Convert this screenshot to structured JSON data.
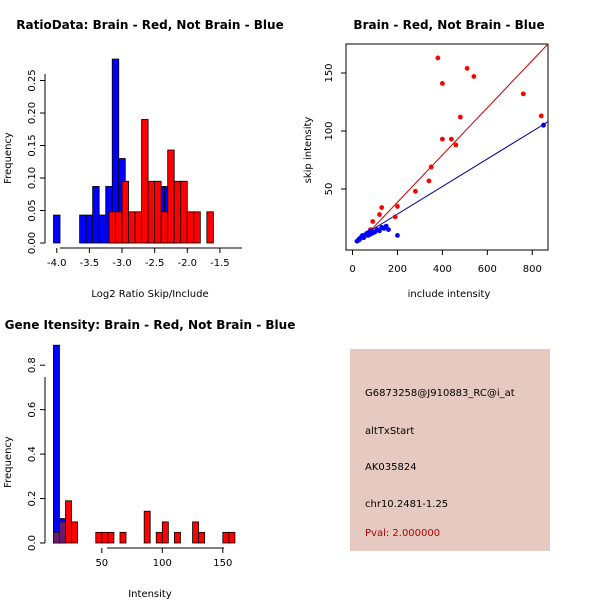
{
  "colors": {
    "red": "#ff0000",
    "blue": "#0000ff",
    "overlap": "#6a1a6c",
    "panel_bg": "#e6c9c0",
    "pval": "#b00000",
    "red_line": "#cc0000",
    "blue_line": "#00008b"
  },
  "chart_data": [
    {
      "type": "bar",
      "title": "RatioData: Brain - Red, Not Brain - Blue",
      "xlabel": "Log2 Ratio Skip/Include",
      "ylabel": "Frequency",
      "xlim": [
        -4.05,
        -1.1
      ],
      "ylim": [
        0,
        0.28
      ],
      "bin_width": 0.1,
      "xticks": [
        -4.0,
        -3.5,
        -3.0,
        -2.5,
        -2.0,
        -1.5
      ],
      "xtick_labels": [
        "-4.0",
        "-3.5",
        "-3.0",
        "-2.5",
        "-2.0",
        "-1.5"
      ],
      "yticks": [
        0,
        0.05,
        0.1,
        0.15,
        0.2,
        0.25
      ],
      "ytick_labels": [
        "0.00",
        "0.05",
        "0.10",
        "0.15",
        "0.20",
        "0.25"
      ],
      "series": [
        {
          "name": "Brain",
          "color": "red",
          "bins": [
            [
              -3.2,
              0.048
            ],
            [
              -3.1,
              0.048
            ],
            [
              -3.0,
              0.095
            ],
            [
              -2.9,
              0.048
            ],
            [
              -2.8,
              0.048
            ],
            [
              -2.7,
              0.19
            ],
            [
              -2.6,
              0.095
            ],
            [
              -2.5,
              0.095
            ],
            [
              -2.4,
              0.048
            ],
            [
              -2.3,
              0.143
            ],
            [
              -2.2,
              0.095
            ],
            [
              -2.1,
              0.095
            ],
            [
              -2.0,
              0.048
            ],
            [
              -1.9,
              0.048
            ],
            [
              -1.7,
              0.048
            ]
          ]
        },
        {
          "name": "Not Brain",
          "color": "blue",
          "bins": [
            [
              -4.05,
              0.043
            ],
            [
              -3.65,
              0.043
            ],
            [
              -3.55,
              0.043
            ],
            [
              -3.45,
              0.087
            ],
            [
              -3.35,
              0.043
            ],
            [
              -3.25,
              0.087
            ],
            [
              -3.15,
              0.283
            ],
            [
              -3.05,
              0.13
            ],
            [
              -2.95,
              0.043
            ],
            [
              -2.65,
              0.043
            ],
            [
              -2.55,
              0.043
            ],
            [
              -2.45,
              0.087
            ],
            [
              -2.35,
              0.087
            ],
            [
              -2.25,
              0.043
            ]
          ]
        }
      ]
    },
    {
      "type": "scatter",
      "title": "Brain - Red, Not Brain - Blue",
      "xlabel": "include intensity",
      "ylabel": "skip intensity",
      "xlim": [
        0,
        870
      ],
      "ylim": [
        0,
        175
      ],
      "xticks": [
        0,
        200,
        400,
        600,
        800
      ],
      "xtick_labels": [
        "0",
        "200",
        "400",
        "600",
        "800"
      ],
      "yticks": [
        50,
        100,
        150
      ],
      "ytick_labels": [
        "50",
        "100",
        "150"
      ],
      "series": [
        {
          "name": "Brain",
          "color": "red",
          "points": [
            [
              30,
              6
            ],
            [
              60,
              10
            ],
            [
              80,
              15
            ],
            [
              90,
              22
            ],
            [
              120,
              28
            ],
            [
              130,
              34
            ],
            [
              190,
              26
            ],
            [
              200,
              35
            ],
            [
              280,
              48
            ],
            [
              340,
              57
            ],
            [
              350,
              69
            ],
            [
              380,
              163
            ],
            [
              400,
              141
            ],
            [
              400,
              93
            ],
            [
              440,
              93
            ],
            [
              460,
              88
            ],
            [
              480,
              112
            ],
            [
              510,
              154
            ],
            [
              540,
              147
            ],
            [
              760,
              132
            ],
            [
              840,
              113
            ],
            [
              850,
              105
            ]
          ]
        },
        {
          "name": "Not Brain",
          "color": "blue",
          "points": [
            [
              20,
              5
            ],
            [
              30,
              7
            ],
            [
              40,
              9
            ],
            [
              45,
              10
            ],
            [
              50,
              8
            ],
            [
              60,
              11
            ],
            [
              65,
              12
            ],
            [
              70,
              10
            ],
            [
              75,
              13
            ],
            [
              80,
              11
            ],
            [
              85,
              14
            ],
            [
              90,
              12
            ],
            [
              100,
              13
            ],
            [
              110,
              15
            ],
            [
              120,
              14
            ],
            [
              130,
              17
            ],
            [
              140,
              16
            ],
            [
              150,
              18
            ],
            [
              160,
              15
            ],
            [
              200,
              10
            ],
            [
              850,
              105
            ]
          ]
        }
      ],
      "fit_lines": [
        {
          "name": "Brain",
          "color": "red_line",
          "from": [
            30,
            4
          ],
          "to": [
            870,
            175
          ]
        },
        {
          "name": "Not Brain",
          "color": "blue_line",
          "from": [
            20,
            7
          ],
          "to": [
            870,
            108
          ]
        }
      ]
    },
    {
      "type": "bar",
      "title": "Gene Itensity: Brain - Red, Not Brain - Blue",
      "xlabel": "Intensity",
      "ylabel": "Frequency",
      "xlim": [
        8,
        170
      ],
      "ylim": [
        0,
        0.9
      ],
      "bin_width": 5,
      "xticks": [
        50,
        100,
        150
      ],
      "xtick_labels": [
        "50",
        "100",
        "150"
      ],
      "yticks": [
        0,
        0.2,
        0.4,
        0.6,
        0.8
      ],
      "ytick_labels": [
        "0.0",
        "0.2",
        "0.4",
        "0.6",
        "0.8"
      ],
      "series": [
        {
          "name": "Brain",
          "color": "red",
          "bins": [
            [
              10,
              0.048
            ],
            [
              15,
              0.095
            ],
            [
              20,
              0.19
            ],
            [
              25,
              0.095
            ],
            [
              45,
              0.048
            ],
            [
              50,
              0.048
            ],
            [
              55,
              0.048
            ],
            [
              65,
              0.048
            ],
            [
              85,
              0.143
            ],
            [
              95,
              0.048
            ],
            [
              100,
              0.095
            ],
            [
              110,
              0.048
            ],
            [
              125,
              0.095
            ],
            [
              130,
              0.048
            ],
            [
              150,
              0.048
            ],
            [
              155,
              0.048
            ]
          ]
        },
        {
          "name": "Not Brain",
          "color": "blue",
          "bins": [
            [
              10,
              0.89
            ],
            [
              15,
              0.11
            ]
          ]
        }
      ]
    }
  ],
  "info_panel": {
    "probe": "G6873258@J910883_RC@i_at",
    "event": "altTxStart",
    "accession": "AK035824",
    "location": "chr10.2481-1.25",
    "pval": "Pval: 2.000000"
  }
}
